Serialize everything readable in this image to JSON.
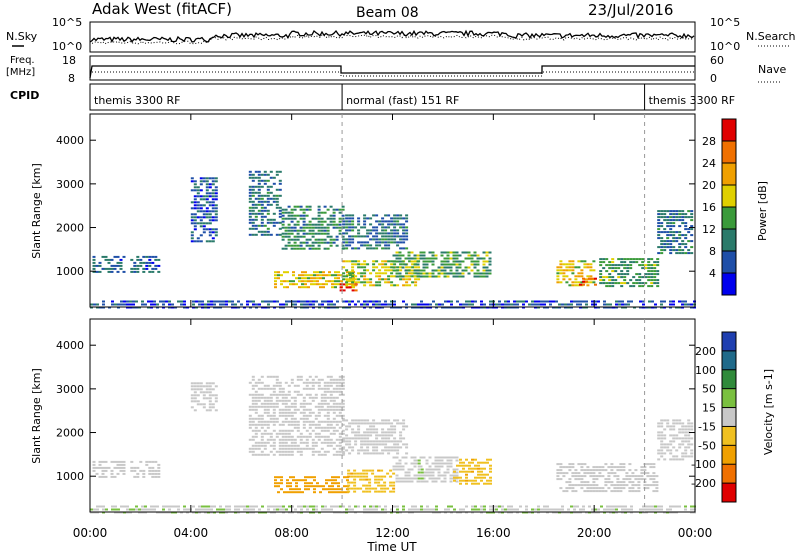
{
  "header": {
    "station": "Adak West (fitACF)",
    "beam": "Beam 08",
    "date": "23/Jul/2016"
  },
  "top_panels": {
    "nsky_label": "N.Sky",
    "nsearch_label": "N.Search",
    "nsky_ticks": [
      "10^5",
      "10^0"
    ],
    "nsearch_ticks": [
      "10^5",
      "10^0"
    ],
    "freq_label": "Freq.",
    "freq_unit": "[MHz]",
    "freq_ticks": [
      "18",
      "8"
    ],
    "nave_label": "Nave",
    "nave_ticks": [
      "60",
      "0"
    ],
    "cpid_label": "CPID"
  },
  "cpid_modes": [
    {
      "label": "themis 3300 RF",
      "start_hour": 0,
      "end_hour": 10
    },
    {
      "label": "normal (fast) 151 RF",
      "start_hour": 10,
      "end_hour": 22
    },
    {
      "label": "themis 3300 RF",
      "start_hour": 22,
      "end_hour": 24
    }
  ],
  "axes": {
    "ylabel": "Slant Range [km]",
    "yticks": [
      "1000",
      "2000",
      "3000",
      "4000"
    ],
    "xlabel": "Time UT",
    "xticks": [
      "00:00",
      "04:00",
      "08:00",
      "12:00",
      "16:00",
      "20:00",
      "00:00"
    ]
  },
  "power_colorbar": {
    "label": "Power [dB]",
    "ticks": [
      "4",
      "8",
      "12",
      "16",
      "20",
      "24",
      "28"
    ],
    "colors": [
      "#0000ee",
      "#1f4fa8",
      "#2a7a6a",
      "#3a9a3a",
      "#e0d000",
      "#f0a000",
      "#f07000",
      "#e00000"
    ]
  },
  "velocity_colorbar": {
    "label": "Velocity [m s-1]",
    "ticks": [
      "200",
      "100",
      "50",
      "15",
      "-15",
      "-50",
      "-100",
      "-200"
    ],
    "colors": [
      "#1f3fb0",
      "#1f6a8a",
      "#2f8a3a",
      "#7ac040",
      "#c8c8c8",
      "#f0c020",
      "#f0a000",
      "#f07000",
      "#e00000"
    ]
  },
  "chart_data": [
    {
      "type": "heatmap",
      "title": "Power",
      "xlabel": "Time UT",
      "ylabel": "Slant Range [km]",
      "xlim_hours": [
        0,
        24
      ],
      "ylim_km": [
        180,
        4600
      ],
      "value_range": [
        0,
        30
      ],
      "regions": [
        {
          "t0": 0.1,
          "t1": 1.3,
          "r0": 950,
          "r1": 1350,
          "v": 7
        },
        {
          "t0": 1.6,
          "t1": 2.7,
          "r0": 950,
          "r1": 1350,
          "v": 7
        },
        {
          "t0": 4.0,
          "t1": 5.0,
          "r0": 1700,
          "r1": 3150,
          "v": 6
        },
        {
          "t0": 6.3,
          "t1": 7.6,
          "r0": 1800,
          "r1": 3300,
          "v": 8
        },
        {
          "t0": 7.6,
          "t1": 10.0,
          "r0": 1500,
          "r1": 2500,
          "v": 10
        },
        {
          "t0": 10.0,
          "t1": 12.5,
          "r0": 1500,
          "r1": 2300,
          "v": 8
        },
        {
          "t0": 7.3,
          "t1": 10.5,
          "r0": 650,
          "r1": 1000,
          "v": 18
        },
        {
          "t0": 9.9,
          "t1": 10.6,
          "r0": 580,
          "r1": 720,
          "v": 28
        },
        {
          "t0": 10.0,
          "t1": 13.0,
          "r0": 650,
          "r1": 1250,
          "v": 16
        },
        {
          "t0": 12.0,
          "t1": 15.9,
          "r0": 850,
          "r1": 1450,
          "v": 12
        },
        {
          "t0": 18.5,
          "t1": 20.0,
          "r0": 700,
          "r1": 1250,
          "v": 18
        },
        {
          "t0": 19.4,
          "t1": 20.0,
          "r0": 650,
          "r1": 850,
          "v": 26
        },
        {
          "t0": 20.2,
          "t1": 22.5,
          "r0": 650,
          "r1": 1300,
          "v": 12
        },
        {
          "t0": 22.5,
          "t1": 23.9,
          "r0": 1400,
          "r1": 2400,
          "v": 8
        },
        {
          "t0": 0.0,
          "t1": 24.0,
          "r0": 190,
          "r1": 330,
          "v": 5
        }
      ]
    },
    {
      "type": "heatmap",
      "title": "Velocity",
      "xlabel": "Time UT",
      "ylabel": "Slant Range [km]",
      "xlim_hours": [
        0,
        24
      ],
      "ylim_km": [
        180,
        4600
      ],
      "value_range": [
        -250,
        250
      ],
      "regions": [
        {
          "t0": 0.1,
          "t1": 1.3,
          "r0": 950,
          "r1": 1350,
          "v": 0
        },
        {
          "t0": 1.6,
          "t1": 2.7,
          "r0": 950,
          "r1": 1350,
          "v": 0
        },
        {
          "t0": 4.0,
          "t1": 5.0,
          "r0": 2500,
          "r1": 3150,
          "v": 0
        },
        {
          "t0": 6.3,
          "t1": 10.0,
          "r0": 1500,
          "r1": 3300,
          "v": 0
        },
        {
          "t0": 10.0,
          "t1": 12.5,
          "r0": 1500,
          "r1": 2300,
          "v": 0
        },
        {
          "t0": 7.3,
          "t1": 10.2,
          "r0": 620,
          "r1": 1000,
          "v": -120
        },
        {
          "t0": 10.2,
          "t1": 12.0,
          "r0": 650,
          "r1": 1150,
          "v": -70
        },
        {
          "t0": 12.0,
          "t1": 14.6,
          "r0": 850,
          "r1": 1450,
          "v": 0
        },
        {
          "t0": 13.0,
          "t1": 13.2,
          "r0": 900,
          "r1": 1450,
          "v": 30
        },
        {
          "t0": 14.4,
          "t1": 15.9,
          "r0": 850,
          "r1": 1400,
          "v": -70
        },
        {
          "t0": 18.5,
          "t1": 22.5,
          "r0": 650,
          "r1": 1300,
          "v": 0
        },
        {
          "t0": 22.5,
          "t1": 23.9,
          "r0": 1400,
          "r1": 2300,
          "v": 0
        },
        {
          "t0": 0.0,
          "t1": 24.0,
          "r0": 190,
          "r1": 330,
          "v": 20
        }
      ]
    }
  ]
}
